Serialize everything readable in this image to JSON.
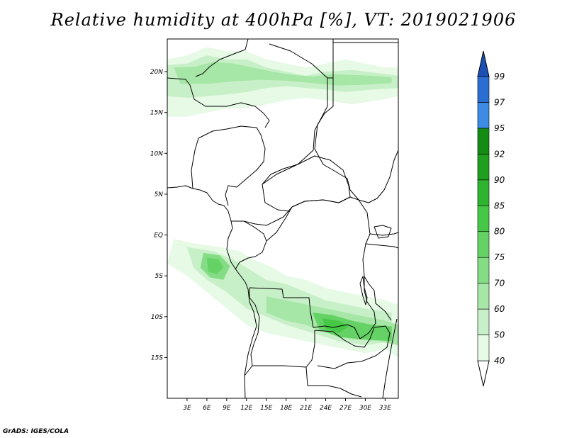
{
  "title": "Relative humidity at 400hPa [%], VT: 2019021906",
  "credit": "GrADS: IGES/COLA",
  "map": {
    "lat_range": [
      -20,
      24
    ],
    "lon_range": [
      0,
      35
    ],
    "lat_ticks": [
      {
        "value": 20,
        "label": "20N"
      },
      {
        "value": 15,
        "label": "15N"
      },
      {
        "value": 10,
        "label": "10N"
      },
      {
        "value": 5,
        "label": "5N"
      },
      {
        "value": 0,
        "label": "EQ"
      },
      {
        "value": -5,
        "label": "5S"
      },
      {
        "value": -10,
        "label": "10S"
      },
      {
        "value": -15,
        "label": "15S"
      }
    ],
    "lon_ticks": [
      {
        "value": 3,
        "label": "3E"
      },
      {
        "value": 6,
        "label": "6E"
      },
      {
        "value": 9,
        "label": "9E"
      },
      {
        "value": 12,
        "label": "12E"
      },
      {
        "value": 15,
        "label": "15E"
      },
      {
        "value": 18,
        "label": "18E"
      },
      {
        "value": 21,
        "label": "21E"
      },
      {
        "value": 24,
        "label": "24E"
      },
      {
        "value": 27,
        "label": "27E"
      },
      {
        "value": 30,
        "label": "30E"
      },
      {
        "value": 33,
        "label": "33E"
      }
    ]
  },
  "colorbar": {
    "levels": [
      "40",
      "50",
      "60",
      "70",
      "75",
      "80",
      "85",
      "90",
      "92",
      "95",
      "97",
      "99"
    ],
    "colors": [
      "#ffffff",
      "#e6fae6",
      "#c8f0c8",
      "#a6e6a6",
      "#84dc84",
      "#64d264",
      "#46c846",
      "#2eb42e",
      "#1ea01e",
      "#128c12",
      "#3c8ce6",
      "#2a6ed2",
      "#1a50b4"
    ]
  },
  "humidity_regions": [
    {
      "name": "sahel-band",
      "level": 1,
      "points": [
        [
          0,
          21.5
        ],
        [
          3,
          22
        ],
        [
          6,
          23
        ],
        [
          9,
          22.5
        ],
        [
          12,
          22.5
        ],
        [
          15,
          21.5
        ],
        [
          18,
          21
        ],
        [
          21,
          20.5
        ],
        [
          24,
          21
        ],
        [
          27,
          21.5
        ],
        [
          30,
          21
        ],
        [
          33,
          20.5
        ],
        [
          35,
          20.5
        ],
        [
          35,
          17
        ],
        [
          32,
          16.5
        ],
        [
          28,
          16
        ],
        [
          24,
          16.5
        ],
        [
          21,
          16.8
        ],
        [
          18,
          16.5
        ],
        [
          15,
          16
        ],
        [
          12,
          15.5
        ],
        [
          9,
          15.5
        ],
        [
          6,
          15
        ],
        [
          3,
          14.5
        ],
        [
          0,
          14.5
        ]
      ]
    },
    {
      "name": "sahel-band-core",
      "level": 2,
      "points": [
        [
          0,
          20.8
        ],
        [
          3,
          21
        ],
        [
          6,
          22
        ],
        [
          9,
          21.5
        ],
        [
          12,
          21.5
        ],
        [
          15,
          20.5
        ],
        [
          18,
          20
        ],
        [
          21,
          19.5
        ],
        [
          24,
          20
        ],
        [
          28,
          20.2
        ],
        [
          32,
          19.8
        ],
        [
          35,
          19.5
        ],
        [
          35,
          18
        ],
        [
          31,
          17.8
        ],
        [
          27,
          17.5
        ],
        [
          24,
          17.8
        ],
        [
          21,
          18
        ],
        [
          18,
          18.2
        ],
        [
          15,
          18
        ],
        [
          12,
          17.5
        ],
        [
          9,
          17.2
        ],
        [
          6,
          17
        ],
        [
          3,
          16.8
        ],
        [
          0,
          17
        ]
      ]
    },
    {
      "name": "sahel-band-inner",
      "level": 3,
      "points": [
        [
          1,
          20.5
        ],
        [
          4,
          20.6
        ],
        [
          7,
          21.2
        ],
        [
          10,
          21
        ],
        [
          13,
          20.5
        ],
        [
          16,
          20
        ],
        [
          19,
          19.6
        ],
        [
          22,
          19.4
        ],
        [
          25,
          19.7
        ],
        [
          28,
          19.6
        ],
        [
          31,
          19.5
        ],
        [
          34,
          19.3
        ],
        [
          34,
          18.6
        ],
        [
          30,
          18.4
        ],
        [
          26,
          18.3
        ],
        [
          22,
          18.6
        ],
        [
          18,
          18.9
        ],
        [
          14,
          19
        ],
        [
          10,
          18.8
        ],
        [
          6,
          18.5
        ],
        [
          2,
          18.5
        ]
      ]
    },
    {
      "name": "west-congo-outer",
      "level": 1,
      "points": [
        [
          1,
          -0.5
        ],
        [
          4,
          -1
        ],
        [
          8,
          -1.5
        ],
        [
          11,
          -2
        ],
        [
          13,
          -3
        ],
        [
          16,
          -4
        ],
        [
          18,
          -5
        ],
        [
          21,
          -5.5
        ],
        [
          24,
          -6.5
        ],
        [
          27,
          -7
        ],
        [
          30,
          -7.5
        ],
        [
          33,
          -8
        ],
        [
          35,
          -8.5
        ],
        [
          35,
          -15
        ],
        [
          33,
          -14
        ],
        [
          30,
          -14.5
        ],
        [
          27,
          -14
        ],
        [
          24,
          -13.5
        ],
        [
          21,
          -13
        ],
        [
          18,
          -12.5
        ],
        [
          15,
          -12
        ],
        [
          12,
          -11
        ],
        [
          9,
          -9
        ],
        [
          6,
          -7
        ],
        [
          3,
          -5
        ],
        [
          0,
          -3.5
        ]
      ]
    },
    {
      "name": "congo-inner",
      "level": 2,
      "points": [
        [
          3,
          -1.5
        ],
        [
          7,
          -2
        ],
        [
          10,
          -3
        ],
        [
          12,
          -4
        ],
        [
          15,
          -5.5
        ],
        [
          18,
          -6
        ],
        [
          21,
          -7
        ],
        [
          24,
          -8
        ],
        [
          27,
          -8.5
        ],
        [
          30,
          -9
        ],
        [
          34,
          -9.5
        ],
        [
          34,
          -13
        ],
        [
          30,
          -13.5
        ],
        [
          26,
          -13
        ],
        [
          22,
          -12
        ],
        [
          18,
          -11
        ],
        [
          15,
          -10
        ],
        [
          12,
          -9
        ],
        [
          9,
          -7
        ],
        [
          6,
          -5.5
        ],
        [
          4,
          -4
        ]
      ]
    },
    {
      "name": "gabon-core",
      "level": 4,
      "points": [
        [
          5.5,
          -2.2
        ],
        [
          8,
          -2.5
        ],
        [
          9.5,
          -3.8
        ],
        [
          8.5,
          -5.5
        ],
        [
          6.5,
          -5.2
        ],
        [
          5,
          -4
        ]
      ]
    },
    {
      "name": "gabon-core-dark",
      "level": 5,
      "points": [
        [
          6,
          -2.8
        ],
        [
          7.8,
          -3
        ],
        [
          8.5,
          -4
        ],
        [
          7.5,
          -4.8
        ],
        [
          6.2,
          -4.5
        ]
      ]
    },
    {
      "name": "angola-core",
      "level": 3,
      "points": [
        [
          15,
          -7.5
        ],
        [
          18,
          -8
        ],
        [
          21,
          -8.5
        ],
        [
          24,
          -9
        ],
        [
          27,
          -9.5
        ],
        [
          30,
          -10
        ],
        [
          33,
          -10.5
        ],
        [
          35,
          -11
        ],
        [
          35,
          -13.5
        ],
        [
          32,
          -13
        ],
        [
          28,
          -12.8
        ],
        [
          24,
          -12
        ],
        [
          21,
          -11
        ],
        [
          18,
          -10.5
        ],
        [
          15,
          -9.5
        ]
      ]
    },
    {
      "name": "zambia-core",
      "level": 5,
      "points": [
        [
          22,
          -9.5
        ],
        [
          25,
          -9.8
        ],
        [
          28,
          -10.5
        ],
        [
          31,
          -11
        ],
        [
          34,
          -11.2
        ],
        [
          34,
          -13
        ],
        [
          30,
          -12.8
        ],
        [
          26,
          -12.5
        ],
        [
          23,
          -11.5
        ]
      ]
    },
    {
      "name": "zambia-core-dark",
      "level": 6,
      "points": [
        [
          23.5,
          -10.2
        ],
        [
          26,
          -10.5
        ],
        [
          27.5,
          -11.2
        ],
        [
          26,
          -12
        ],
        [
          24,
          -11.5
        ]
      ]
    }
  ]
}
